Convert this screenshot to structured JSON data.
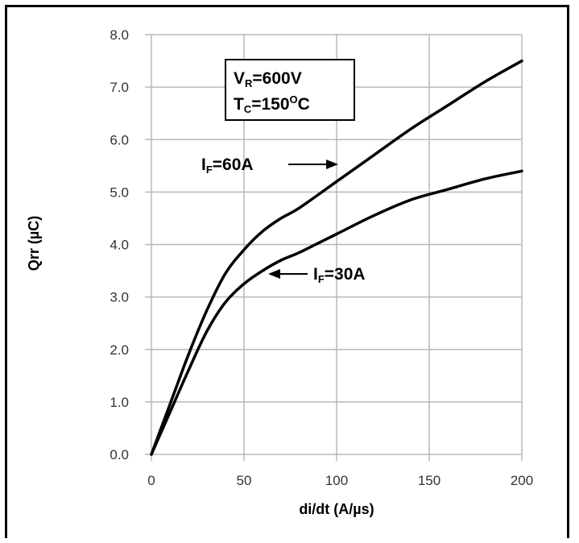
{
  "chart_data": {
    "type": "line",
    "xlabel": "di/dt (A/µs)",
    "ylabel": "Qrr (µC)",
    "xlim": [
      0,
      200
    ],
    "ylim": [
      0,
      8
    ],
    "x_ticks": [
      "0",
      "50",
      "100",
      "150",
      "200"
    ],
    "y_ticks": [
      "0.0",
      "1.0",
      "2.0",
      "3.0",
      "4.0",
      "5.0",
      "6.0",
      "7.0",
      "8.0"
    ],
    "grid": true,
    "conditions": {
      "vr": {
        "main": "V",
        "sub": "R",
        "rest": "=600V"
      },
      "tc": {
        "main": "T",
        "sub": "C",
        "rest": "=150",
        "sup": "O",
        "tail": "C"
      }
    },
    "series": [
      {
        "name": "IF=60A",
        "label": {
          "main": "I",
          "sub": "F",
          "rest": "=60A"
        },
        "x": [
          0,
          10,
          20,
          30,
          40,
          50,
          60,
          70,
          80,
          100,
          120,
          140,
          160,
          180,
          200
        ],
        "y": [
          0,
          0.95,
          1.9,
          2.75,
          3.45,
          3.9,
          4.25,
          4.5,
          4.7,
          5.2,
          5.7,
          6.2,
          6.65,
          7.1,
          7.5
        ]
      },
      {
        "name": "IF=30A",
        "label": {
          "main": "I",
          "sub": "F",
          "rest": "=30A"
        },
        "x": [
          0,
          10,
          20,
          30,
          40,
          50,
          60,
          70,
          80,
          100,
          120,
          140,
          160,
          180,
          200
        ],
        "y": [
          0,
          0.8,
          1.6,
          2.35,
          2.9,
          3.25,
          3.5,
          3.7,
          3.85,
          4.2,
          4.55,
          4.85,
          5.05,
          5.25,
          5.4
        ]
      }
    ]
  }
}
